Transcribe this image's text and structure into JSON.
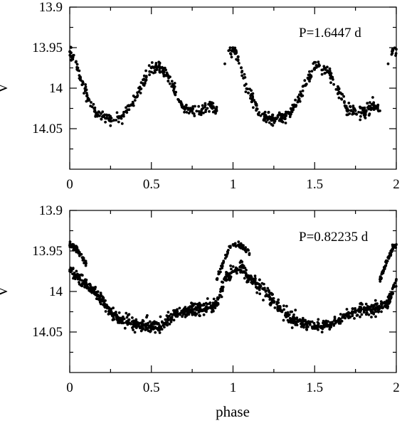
{
  "chart_data": [
    {
      "type": "scatter",
      "annotation": "P=1.6447 d",
      "ylabel": "V",
      "xlim": [
        0,
        2
      ],
      "ylim": [
        14.1,
        13.9
      ],
      "y_inverted": true,
      "x_ticks": [
        "0",
        "0.5",
        "1",
        "1.5",
        "2"
      ],
      "y_ticks": [
        "13.9",
        "13.95",
        "14",
        "14.05"
      ],
      "series": [
        {
          "x": [
            0.0,
            0.02,
            0.05,
            0.08,
            0.12,
            0.16,
            0.2,
            0.25,
            0.3,
            0.35,
            0.4,
            0.45,
            0.5,
            0.53,
            0.56,
            0.6,
            0.65,
            0.7,
            0.75,
            0.8,
            0.85,
            0.9,
            0.95,
            0.98,
            1.0,
            1.02,
            1.05,
            1.08,
            1.12,
            1.16,
            1.2,
            1.25,
            1.3,
            1.35,
            1.4,
            1.45,
            1.5,
            1.53,
            1.56,
            1.6,
            1.65,
            1.7,
            1.75,
            1.8,
            1.85,
            1.9,
            1.95,
            1.98,
            2.0
          ],
          "y": [
            13.955,
            13.962,
            13.975,
            13.995,
            14.015,
            14.03,
            14.035,
            14.04,
            14.037,
            14.03,
            14.015,
            13.995,
            13.975,
            13.972,
            13.975,
            13.985,
            14.005,
            14.025,
            14.028,
            14.03,
            14.02,
            14.028,
            13.97,
            13.953,
            13.952,
            13.955,
            13.975,
            13.995,
            14.015,
            14.03,
            14.035,
            14.04,
            14.037,
            14.03,
            14.015,
            13.995,
            13.975,
            13.972,
            13.975,
            13.985,
            14.005,
            14.025,
            14.028,
            14.03,
            14.02,
            14.028,
            13.97,
            13.953,
            13.952
          ]
        }
      ]
    },
    {
      "type": "scatter",
      "annotation": "P=0.82235 d",
      "xlabel": "phase",
      "ylabel": "V",
      "xlim": [
        0,
        2
      ],
      "ylim": [
        14.1,
        13.9
      ],
      "y_inverted": true,
      "x_ticks": [
        "0",
        "0.5",
        "1",
        "1.5",
        "2"
      ],
      "y_ticks": [
        "13.9",
        "13.95",
        "14",
        "14.05"
      ],
      "series": [
        {
          "x": [
            0.0,
            0.05,
            0.1,
            0.15,
            0.2,
            0.25,
            0.3,
            0.35,
            0.4,
            0.45,
            0.5,
            0.55,
            0.6,
            0.65,
            0.7,
            0.75,
            0.8,
            0.85,
            0.9,
            0.95,
            1.0,
            1.02,
            1.05,
            1.1,
            1.15,
            1.2,
            1.25,
            1.3,
            1.35,
            1.4,
            1.45,
            1.5,
            1.55,
            1.6,
            1.65,
            1.7,
            1.75,
            1.8,
            1.85,
            1.9,
            1.95,
            2.0
          ],
          "y": [
            13.975,
            13.983,
            13.99,
            14.0,
            14.012,
            14.025,
            14.033,
            14.037,
            14.04,
            14.042,
            14.043,
            14.042,
            14.035,
            14.028,
            14.025,
            14.022,
            14.022,
            14.02,
            14.015,
            13.985,
            13.975,
            13.975,
            13.97,
            13.983,
            13.99,
            14.0,
            14.012,
            14.025,
            14.033,
            14.037,
            14.04,
            14.042,
            14.043,
            14.042,
            14.035,
            14.028,
            14.025,
            14.022,
            14.022,
            14.02,
            14.015,
            13.985
          ]
        },
        {
          "x": [
            0.0,
            0.03,
            0.06,
            0.1,
            0.9,
            0.94,
            0.98,
            1.0,
            1.03,
            1.06,
            1.1,
            1.9,
            1.94,
            1.98,
            2.0
          ],
          "y": [
            13.943,
            13.945,
            13.953,
            13.965,
            13.985,
            13.965,
            13.945,
            13.942,
            13.943,
            13.945,
            13.953,
            13.985,
            13.965,
            13.945,
            13.942
          ]
        }
      ]
    }
  ]
}
